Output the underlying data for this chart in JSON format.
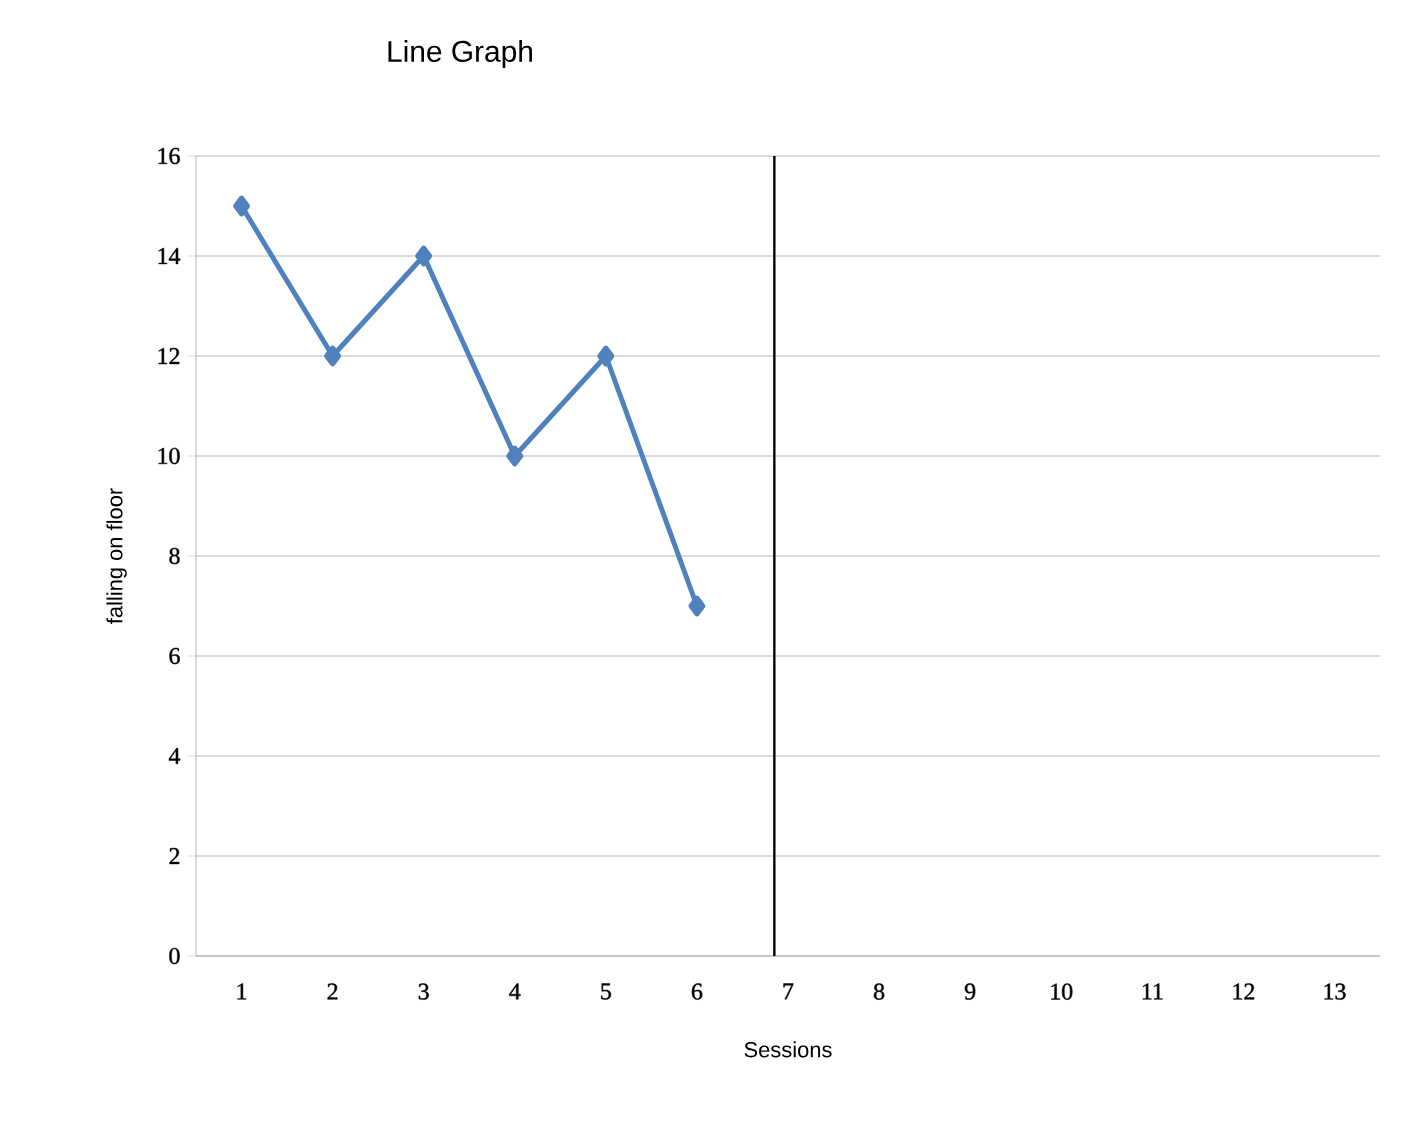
{
  "chart_data": {
    "type": "line",
    "title": "Line Graph",
    "xlabel": "Sessions",
    "ylabel": "falling on floor",
    "x": [
      1,
      2,
      3,
      4,
      5,
      6
    ],
    "series": [
      {
        "color": "#4f81bd",
        "values": [
          15,
          12,
          14,
          10,
          12,
          7
        ]
      }
    ],
    "xlim": [
      0.5,
      13.5
    ],
    "xticks": [
      1,
      2,
      3,
      4,
      5,
      6,
      7,
      8,
      9,
      10,
      11,
      12,
      13
    ],
    "ylim": [
      0,
      16
    ],
    "yticks": [
      0,
      2,
      4,
      6,
      8,
      10,
      12,
      14,
      16
    ],
    "ref_lines": [
      {
        "axis": "x",
        "value": 6.85,
        "color": "#000000"
      }
    ],
    "grid": "y",
    "marker": "diamond",
    "line_style": "solid"
  }
}
